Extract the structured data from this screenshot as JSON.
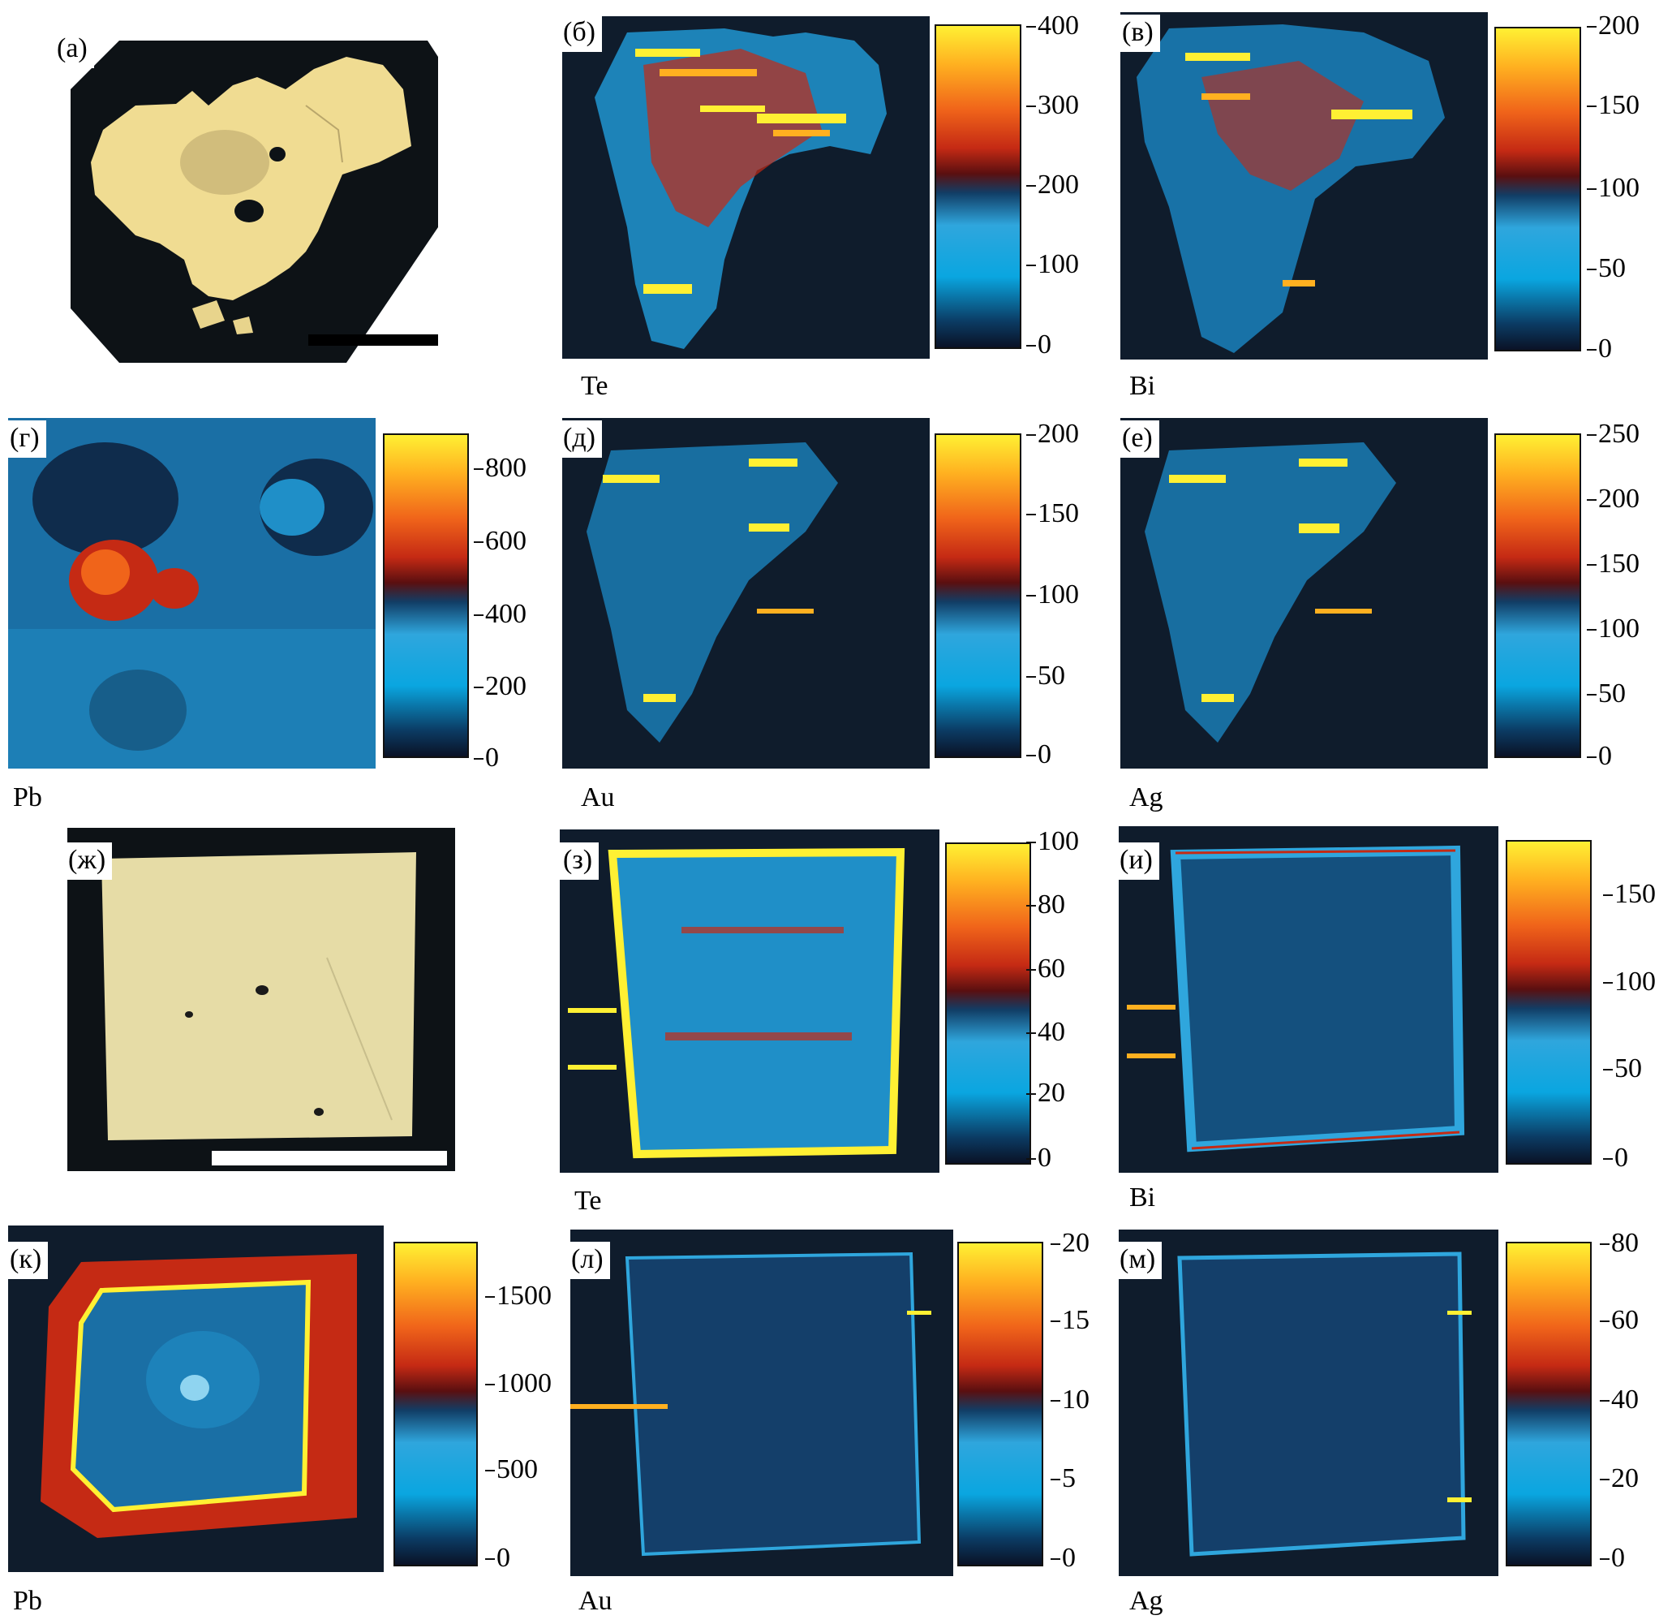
{
  "panels": {
    "a": {
      "label": "(а)"
    },
    "b": {
      "label": "(б)",
      "element": "Te",
      "scale": [
        "400",
        "300",
        "200",
        "100",
        "0"
      ]
    },
    "v": {
      "label": "(в)",
      "element": "Bi",
      "scale": [
        "200",
        "150",
        "100",
        "50",
        "0"
      ]
    },
    "g": {
      "label": "(г)",
      "element": "Pb",
      "scale": [
        "800",
        "600",
        "400",
        "200",
        "0"
      ]
    },
    "d": {
      "label": "(д)",
      "element": "Au",
      "scale": [
        "200",
        "150",
        "100",
        "50",
        "0"
      ]
    },
    "e": {
      "label": "(е)",
      "element": "Ag",
      "scale": [
        "250",
        "200",
        "150",
        "100",
        "50",
        "0"
      ]
    },
    "zh": {
      "label": "(ж)"
    },
    "z": {
      "label": "(з)",
      "element": "Te",
      "scale": [
        "100",
        "80",
        "60",
        "40",
        "20",
        "0"
      ]
    },
    "i": {
      "label": "(и)",
      "element": "Bi",
      "scale": [
        "150",
        "100",
        "50",
        "0"
      ]
    },
    "k": {
      "label": "(к)",
      "element": "Pb",
      "scale": [
        "1500",
        "1000",
        "500",
        "0"
      ]
    },
    "l": {
      "label": "(л)",
      "element": "Au",
      "scale": [
        "20",
        "15",
        "10",
        "5",
        "0"
      ]
    },
    "m": {
      "label": "(м)",
      "element": "Ag",
      "scale": [
        "80",
        "60",
        "40",
        "20",
        "0"
      ]
    }
  },
  "colors": {
    "background_dark": "#0f1c2c",
    "low": "#0aa6e0",
    "mid": "#c52a14",
    "high": "#fff033",
    "mineral": "#f0dc92",
    "mineral_cube": "#e6dca6"
  }
}
